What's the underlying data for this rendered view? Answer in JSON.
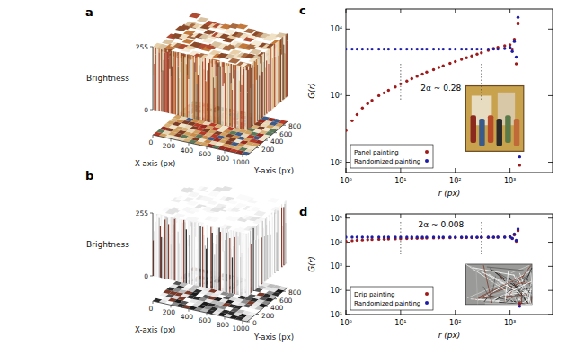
{
  "chart_data": [
    {
      "type": "surface3d",
      "panel_label": "a",
      "x_label": "X-axis (px)",
      "y_label": "Y-axis (px)",
      "z_label": "Brightness",
      "xlim": [
        0,
        1050
      ],
      "ylim": [
        0,
        900
      ],
      "zlim": [
        0,
        255
      ],
      "xticks": [
        0,
        200,
        400,
        600,
        800,
        1000
      ],
      "yticks": [
        200,
        400,
        600,
        800
      ],
      "zticks": [
        0,
        255
      ]
    },
    {
      "type": "surface3d",
      "panel_label": "b",
      "x_label": "X-axis (px)",
      "y_label": "Y-axis (px)",
      "z_label": "Brightness",
      "xlim": [
        0,
        1050
      ],
      "ylim": [
        0,
        900
      ],
      "zlim": [
        0,
        255
      ],
      "xticks": [
        0,
        200,
        400,
        600,
        800,
        1000
      ],
      "yticks": [
        0,
        200,
        400,
        600,
        800
      ],
      "zticks": [
        0,
        255
      ]
    },
    {
      "type": "scatter",
      "panel_label": "c",
      "x_label": "r (px)",
      "y_label": "G(r)",
      "log": true,
      "xlim": [
        1,
        6000
      ],
      "ylim": [
        70,
        20000
      ],
      "xticks": [
        {
          "value": 1,
          "label": "10⁰"
        },
        {
          "value": 10,
          "label": "10¹"
        },
        {
          "value": 100,
          "label": "10²"
        },
        {
          "value": 1000,
          "label": "10³"
        }
      ],
      "yticks": [
        {
          "value": 100,
          "label": "10²"
        },
        {
          "value": 1000,
          "label": "10³"
        },
        {
          "value": 10000,
          "label": "10⁴"
        }
      ],
      "legend": "bottom-left",
      "annotation": "2α ~ 0.28",
      "fit_range": [
        10,
        300
      ],
      "x": [
        1,
        1.3,
        1.6,
        2,
        2.5,
        3,
        4,
        5,
        6,
        8,
        10,
        13,
        16,
        20,
        25,
        30,
        40,
        50,
        60,
        80,
        100,
        130,
        160,
        200,
        250,
        300,
        400,
        500,
        600,
        800,
        1000,
        1100,
        1200,
        1300,
        1400,
        1500
      ],
      "series": [
        {
          "name": "Panel painting",
          "color": "#9e1a1a",
          "marker": "circle",
          "values": [
            300,
            420,
            520,
            650,
            760,
            850,
            1000,
            1100,
            1200,
            1350,
            1500,
            1650,
            1800,
            1950,
            2100,
            2250,
            2450,
            2650,
            2800,
            3050,
            3250,
            3500,
            3700,
            3950,
            4200,
            4400,
            4800,
            5100,
            5300,
            5600,
            5800,
            5000,
            7000,
            3000,
            12000,
            90
          ]
        },
        {
          "name": "Randomized painting",
          "color": "#1c1ca8",
          "marker": "circle",
          "values": [
            5000,
            5000,
            5000,
            5000,
            5000,
            5000,
            5000,
            5000,
            5000,
            5000,
            5000,
            5000,
            5000,
            5000,
            5000,
            5000,
            5000,
            5000,
            5000,
            5000,
            5000,
            5000,
            5000,
            5000,
            5000,
            5000,
            5000,
            5000,
            5000,
            5100,
            5300,
            4600,
            6500,
            3800,
            15000,
            120
          ]
        }
      ]
    },
    {
      "type": "scatter",
      "panel_label": "d",
      "x_label": "r (px)",
      "y_label": "G(r)",
      "log": true,
      "xlim": [
        1,
        6000
      ],
      "ylim": [
        10,
        150000
      ],
      "xticks": [
        {
          "value": 1,
          "label": "10⁰"
        },
        {
          "value": 10,
          "label": "10¹"
        },
        {
          "value": 100,
          "label": "10²"
        },
        {
          "value": 1000,
          "label": "10³"
        }
      ],
      "yticks": [
        {
          "value": 10,
          "label": "10¹"
        },
        {
          "value": 100,
          "label": "10²"
        },
        {
          "value": 1000,
          "label": "10³"
        },
        {
          "value": 10000,
          "label": "10⁴"
        },
        {
          "value": 100000,
          "label": "10⁵"
        }
      ],
      "legend": "bottom-left",
      "annotation": "2α ~ 0.008",
      "fit_range": [
        10,
        300
      ],
      "x": [
        1,
        1.3,
        1.6,
        2,
        2.5,
        3,
        4,
        5,
        6,
        8,
        10,
        13,
        16,
        20,
        25,
        30,
        40,
        50,
        60,
        80,
        100,
        130,
        160,
        200,
        250,
        300,
        400,
        500,
        600,
        800,
        1000,
        1100,
        1200,
        1300,
        1400,
        1500
      ],
      "series": [
        {
          "name": "Drip painting",
          "color": "#9e1a1a",
          "marker": "circle",
          "values": [
            11000,
            11500,
            12000,
            12300,
            12600,
            12800,
            13100,
            13300,
            13500,
            13700,
            13900,
            14100,
            14300,
            14400,
            14600,
            14700,
            14900,
            15000,
            15100,
            15200,
            15300,
            15400,
            15500,
            15500,
            15600,
            15700,
            15800,
            15900,
            16000,
            16200,
            17000,
            14000,
            20000,
            11000,
            30000,
            28
          ]
        },
        {
          "name": "Randomized painting",
          "color": "#1c1ca8",
          "marker": "circle",
          "values": [
            16000,
            16000,
            16000,
            16000,
            16000,
            16000,
            16000,
            16000,
            16000,
            16000,
            16000,
            16000,
            16000,
            16000,
            16000,
            16000,
            16000,
            16000,
            16000,
            16000,
            16000,
            16000,
            16000,
            16000,
            16000,
            16000,
            16000,
            16000,
            16000,
            16100,
            16500,
            14500,
            22000,
            12000,
            35000,
            22
          ]
        }
      ]
    }
  ]
}
